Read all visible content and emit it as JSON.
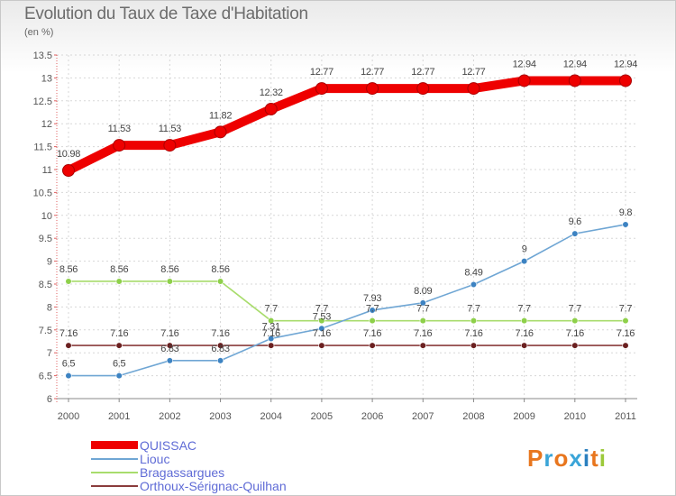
{
  "title": "Evolution du Taux de Taxe d'Habitation",
  "unit": "(en %)",
  "logo": {
    "text": "Proxiti",
    "colors": [
      "#e8761e",
      "#3aa5d8",
      "#e8761e",
      "#3aa5d8",
      "#2a7fbf",
      "#e8761e",
      "#9cc93a"
    ]
  },
  "chart_data": {
    "type": "line",
    "title": "Evolution du Taux de Taxe d'Habitation",
    "ylabel": "(en %)",
    "xlabel": "",
    "categories": [
      "2000",
      "2001",
      "2002",
      "2003",
      "2004",
      "2005",
      "2006",
      "2007",
      "2008",
      "2009",
      "2010",
      "2011"
    ],
    "ylim": [
      6,
      13.5
    ],
    "yticks": [
      "6",
      "6.5",
      "7",
      "7.5",
      "8",
      "8.5",
      "9",
      "9.5",
      "10",
      "10.5",
      "11",
      "11.5",
      "12",
      "12.5",
      "13",
      "13.5"
    ],
    "grid": true,
    "legend_position": "bottom-left",
    "series": [
      {
        "name": "QUISSAC",
        "color": "#ee0000",
        "emphasis": true,
        "values": [
          10.98,
          11.53,
          11.53,
          11.82,
          12.32,
          12.77,
          12.77,
          12.77,
          12.77,
          12.94,
          12.94,
          12.94
        ],
        "labels": [
          "10.98",
          "11.53",
          "11.53",
          "11.82",
          "12.32",
          "12.77",
          "12.77",
          "12.77",
          "12.77",
          "12.94",
          "12.94",
          "12.94"
        ]
      },
      {
        "name": "Liouc",
        "color": "#6fa6d4",
        "marker": "#3d83c2",
        "values": [
          6.5,
          6.5,
          6.83,
          6.83,
          7.31,
          7.53,
          7.93,
          8.09,
          8.49,
          9,
          9.6,
          9.8
        ],
        "labels": [
          "6.5",
          "6.5",
          "6.83",
          "6.83",
          "7.31",
          "7.53",
          "7.93",
          "8.09",
          "8.49",
          "9",
          "9.6",
          "9.8"
        ]
      },
      {
        "name": "Bragassargues",
        "color": "#a8dc6c",
        "marker": "#8ed04a",
        "values": [
          8.56,
          8.56,
          8.56,
          8.56,
          7.7,
          7.7,
          7.7,
          7.7,
          7.7,
          7.7,
          7.7,
          7.7
        ],
        "labels": [
          "8.56",
          "8.56",
          "8.56",
          "8.56",
          "7.7",
          "7.7",
          "7.7",
          "7.7",
          "7.7",
          "7.7",
          "7.7",
          "7.7"
        ]
      },
      {
        "name": "Orthoux-Sérignac-Quilhan",
        "color": "#8a3c3c",
        "marker": "#6b2020",
        "values": [
          7.16,
          7.16,
          7.16,
          7.16,
          7.16,
          7.16,
          7.16,
          7.16,
          7.16,
          7.16,
          7.16,
          7.16
        ],
        "labels": [
          "7.16",
          "7.16",
          "7.16",
          "7.16",
          "7.16",
          "7.16",
          "7.16",
          "7.16",
          "7.16",
          "7.16",
          "7.16",
          "7.16"
        ]
      }
    ]
  }
}
